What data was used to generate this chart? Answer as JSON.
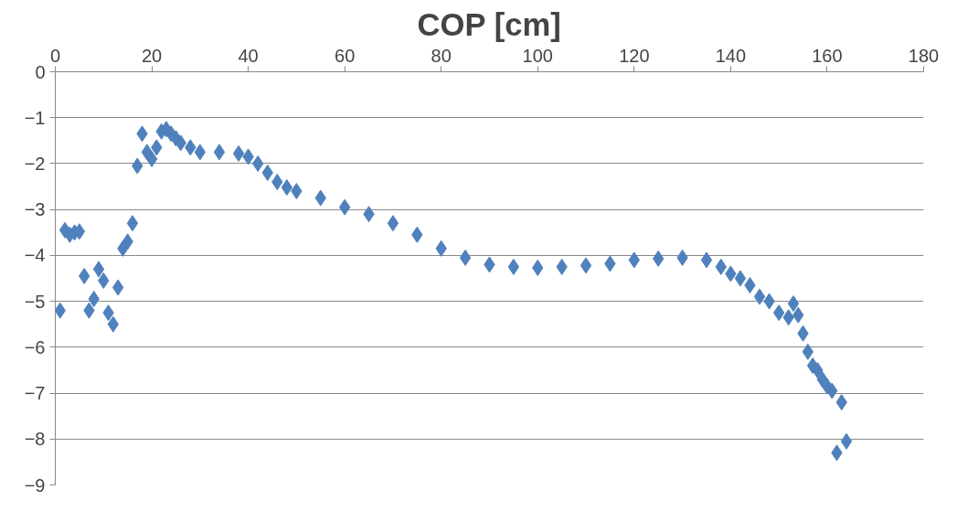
{
  "chart_data": {
    "type": "scatter",
    "title": "COP [cm]",
    "marker": "diamond",
    "grid": "y",
    "xlim": [
      0,
      180
    ],
    "xticks": [
      0,
      20,
      40,
      60,
      80,
      100,
      120,
      140,
      160,
      180
    ],
    "ylim": [
      -9,
      0
    ],
    "yticks": [
      -9,
      -8,
      -7,
      -6,
      -5,
      -4,
      -3,
      -2,
      -1,
      0
    ],
    "series": [
      {
        "color": "#4f81bd",
        "x": [
          1,
          2,
          3,
          4,
          5,
          6,
          7,
          8,
          9,
          10,
          11,
          12,
          13,
          14,
          15,
          16,
          17,
          18,
          19,
          20,
          21,
          22,
          23,
          24,
          25,
          26,
          28,
          30,
          34,
          38,
          40,
          42,
          44,
          46,
          48,
          50,
          55,
          60,
          65,
          70,
          75,
          80,
          85,
          90,
          95,
          100,
          105,
          110,
          115,
          120,
          125,
          130,
          135,
          138,
          140,
          142,
          144,
          146,
          148,
          150,
          152,
          153,
          154,
          155,
          156,
          157,
          158,
          159,
          160,
          161,
          162,
          163,
          164
        ],
        "values": [
          -5.2,
          -3.45,
          -3.55,
          -3.5,
          -3.48,
          -4.45,
          -5.2,
          -4.95,
          -4.3,
          -4.55,
          -5.25,
          -5.5,
          -4.7,
          -3.85,
          -3.7,
          -3.3,
          -2.05,
          -1.35,
          -1.75,
          -1.9,
          -1.65,
          -1.3,
          -1.25,
          -1.35,
          -1.45,
          -1.55,
          -1.65,
          -1.75,
          -1.75,
          -1.78,
          -1.85,
          -2.0,
          -2.2,
          -2.4,
          -2.52,
          -2.6,
          -2.75,
          -2.95,
          -3.1,
          -3.3,
          -3.55,
          -3.85,
          -4.05,
          -4.2,
          -4.25,
          -4.27,
          -4.25,
          -4.22,
          -4.18,
          -4.1,
          -4.07,
          -4.05,
          -4.1,
          -4.25,
          -4.4,
          -4.5,
          -4.65,
          -4.9,
          -5.0,
          -5.25,
          -5.35,
          -5.05,
          -5.3,
          -5.7,
          -6.1,
          -6.4,
          -6.5,
          -6.7,
          -6.85,
          -6.95,
          -8.3,
          -7.2,
          -8.05
        ]
      }
    ]
  }
}
